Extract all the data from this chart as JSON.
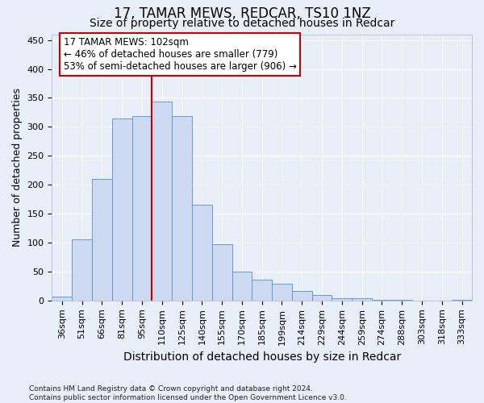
{
  "title": "17, TAMAR MEWS, REDCAR, TS10 1NZ",
  "subtitle": "Size of property relative to detached houses in Redcar",
  "xlabel": "Distribution of detached houses by size in Redcar",
  "ylabel": "Number of detached properties",
  "categories": [
    "36sqm",
    "51sqm",
    "66sqm",
    "81sqm",
    "95sqm",
    "110sqm",
    "125sqm",
    "140sqm",
    "155sqm",
    "170sqm",
    "185sqm",
    "199sqm",
    "214sqm",
    "229sqm",
    "244sqm",
    "259sqm",
    "274sqm",
    "288sqm",
    "303sqm",
    "318sqm",
    "333sqm"
  ],
  "values": [
    7,
    105,
    210,
    315,
    318,
    344,
    318,
    165,
    97,
    50,
    36,
    29,
    16,
    9,
    4,
    4,
    1,
    1,
    0,
    0,
    1
  ],
  "bar_color": "#ccd9f0",
  "bar_edge_color": "#6699cc",
  "vline_label": "17 TAMAR MEWS: 102sqm",
  "annotation_line1": "← 46% of detached houses are smaller (779)",
  "annotation_line2": "53% of semi-detached houses are larger (906) →",
  "annotation_box_facecolor": "#ffffff",
  "annotation_box_edgecolor": "#cc0000",
  "vline_color": "#cc0000",
  "vline_pos": 4.5,
  "ylim": [
    0,
    460
  ],
  "yticks": [
    0,
    50,
    100,
    150,
    200,
    250,
    300,
    350,
    400,
    450
  ],
  "footer_line1": "Contains HM Land Registry data © Crown copyright and database right 2024.",
  "footer_line2": "Contains public sector information licensed under the Open Government Licence v3.0.",
  "bg_color": "#e8eef8",
  "grid_color": "#ffffff",
  "title_fontsize": 12,
  "subtitle_fontsize": 10,
  "xlabel_fontsize": 10,
  "ylabel_fontsize": 9,
  "tick_fontsize": 8,
  "annotation_fontsize": 8.5,
  "footer_fontsize": 6.5
}
